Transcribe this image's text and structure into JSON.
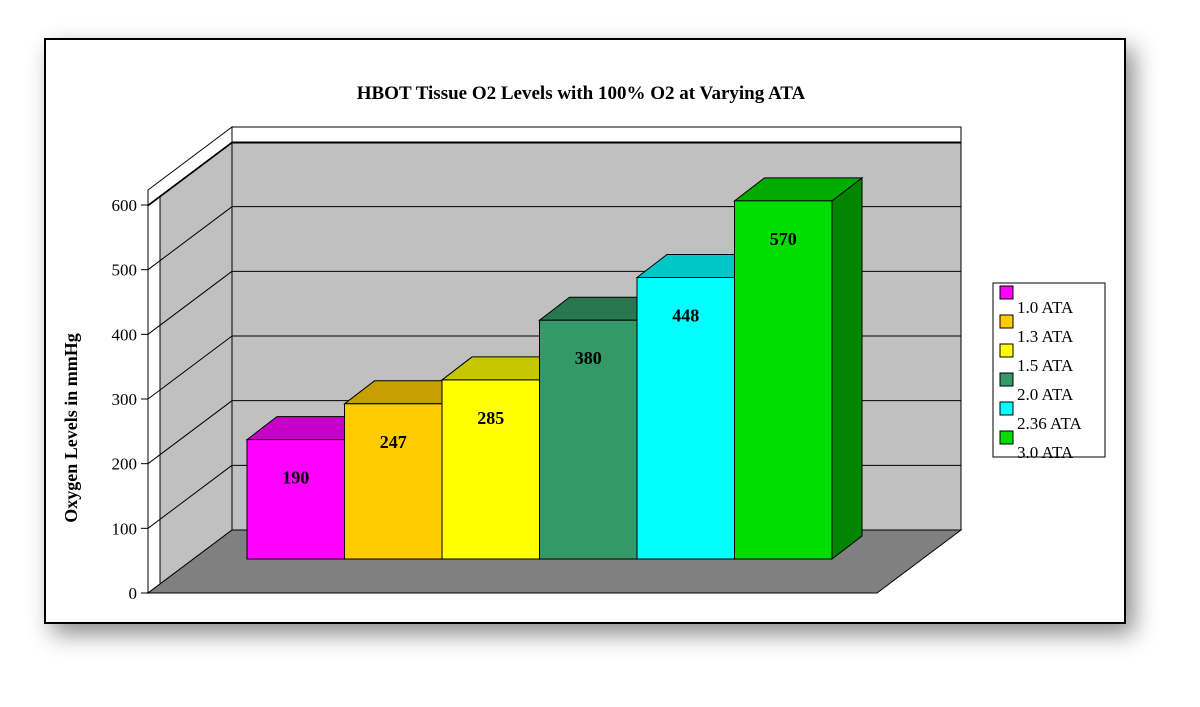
{
  "chart_data": {
    "type": "bar",
    "title": "HBOT Tissue O2 Levels with 100% O2 at Varying ATA",
    "xlabel": "",
    "ylabel": "Oxygen Levels in mmHg",
    "ylim": [
      0,
      600
    ],
    "yticks": [
      "0",
      "100",
      "200",
      "300",
      "400",
      "500",
      "600"
    ],
    "categories": [
      "1.0 ATA",
      "1.3 ATA",
      "1.5 ATA",
      "2.0 ATA",
      "2.36 ATA",
      "3.0 ATA"
    ],
    "values": [
      190,
      247,
      285,
      380,
      448,
      570
    ],
    "data_labels": [
      "190",
      "247",
      "285",
      "380",
      "448",
      "570"
    ],
    "colors": [
      "#ff00ff",
      "#ffcc00",
      "#ffff00",
      "#339966",
      "#00ffff",
      "#00dd00"
    ],
    "grid": true,
    "legend_position": "right",
    "three_d": true
  }
}
